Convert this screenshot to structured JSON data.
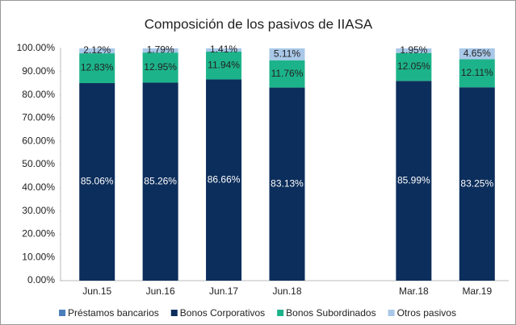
{
  "chart_data": {
    "type": "stacked_bar",
    "title": "Composición de los pasivos de IIASA",
    "categories": [
      "Jun.15",
      "Jun.16",
      "Jun.17",
      "Jun.18",
      null,
      "Mar.18",
      "Mar.19"
    ],
    "series": [
      {
        "name": "Préstamos bancarios",
        "color": "#4a7ebb",
        "values": [
          0,
          0,
          0,
          0,
          null,
          0,
          0
        ]
      },
      {
        "name": "Bonos Corporativos",
        "color": "#0c2e5c",
        "values": [
          85.06,
          85.26,
          86.66,
          83.13,
          null,
          85.99,
          83.25
        ],
        "value_labels": [
          "85.06%",
          "85.26%",
          "86.66%",
          "83.13%",
          null,
          "85.99%",
          "83.25%"
        ]
      },
      {
        "name": "Bonos Subordinados",
        "color": "#1db38a",
        "values": [
          12.83,
          12.95,
          11.94,
          11.76,
          null,
          12.05,
          12.11
        ],
        "value_labels": [
          "12.83%",
          "12.95%",
          "11.94%",
          "11.76%",
          null,
          "12.05%",
          "12.11%"
        ]
      },
      {
        "name": "Otros pasivos",
        "color": "#a9c8e8",
        "values": [
          2.12,
          1.79,
          1.41,
          5.11,
          null,
          1.95,
          4.65
        ],
        "value_labels": [
          "2.12%",
          "1.79%",
          "1.41%",
          "5.11%",
          null,
          "1.95%",
          "4.65%"
        ]
      }
    ],
    "ylim": [
      0,
      100
    ],
    "yticks": [
      {
        "value": 0,
        "label": "0.00%"
      },
      {
        "value": 10,
        "label": "10.00%"
      },
      {
        "value": 20,
        "label": "20.00%"
      },
      {
        "value": 30,
        "label": "30.00%"
      },
      {
        "value": 40,
        "label": "40.00%"
      },
      {
        "value": 50,
        "label": "50.00%"
      },
      {
        "value": 60,
        "label": "60.00%"
      },
      {
        "value": 70,
        "label": "70.00%"
      },
      {
        "value": 80,
        "label": "80.00%"
      },
      {
        "value": 90,
        "label": "90.00%"
      },
      {
        "value": 100,
        "label": "100.00%"
      }
    ],
    "grid": false,
    "legend": "bottom"
  }
}
